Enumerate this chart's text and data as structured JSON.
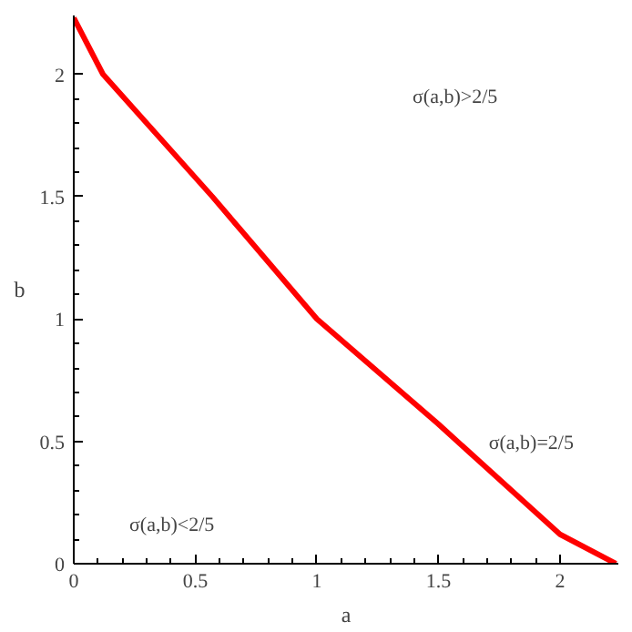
{
  "chart_data": {
    "type": "line",
    "xlabel": "a",
    "ylabel": "b",
    "x": [
      0,
      0.12,
      0.57,
      1,
      1.5,
      2,
      2.23
    ],
    "series": [
      {
        "color": "#ff0000",
        "values": [
          2.23,
          2,
          1.5,
          1,
          0.57,
          0.12,
          0
        ]
      }
    ],
    "xlim": [
      0,
      2.24
    ],
    "ylim": [
      0,
      2.24
    ],
    "xticks": [
      0,
      0.5,
      1,
      1.5,
      2
    ],
    "yticks": [
      0,
      0.5,
      1,
      1.5,
      2
    ],
    "annotations": [
      "σ(a,b)>2/5",
      "σ(a,b)=2/5",
      "σ(a,b)<2/5"
    ],
    "grid": false,
    "marker": "none",
    "line_style": "solid"
  }
}
